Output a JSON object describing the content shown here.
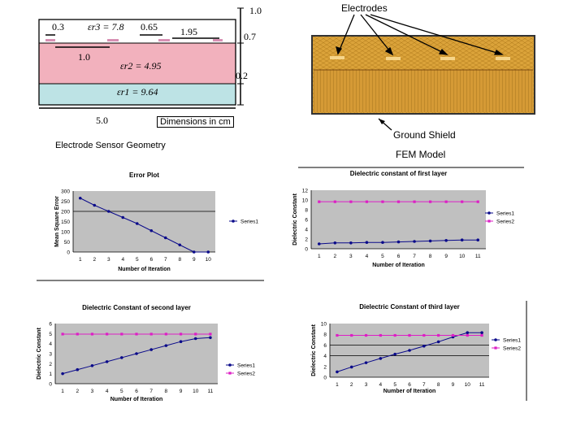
{
  "captions": {
    "electrodes": "Electrodes",
    "dimensions": "Dimensions in cm",
    "ground_shield": "Ground Shield",
    "geometry": "Electrode Sensor Geometry",
    "fem_model": "FEM Model"
  },
  "geometry": {
    "dim_03": "0.3",
    "dim_065": "0.65",
    "dim_195": "1.95",
    "dim_10_top": "1.0",
    "dim_07": "0.7",
    "dim_10_mid": "1.0",
    "dim_02": "0.2",
    "dim_50": "5.0",
    "er3": "εr3 = 7.8",
    "er2": "εr2 = 4.95",
    "er1": "εr1 = 9.64"
  },
  "colors": {
    "layer3": "#ffffff",
    "layer2": "#f2b1bd",
    "layer1": "#bde3e5",
    "electrode": "#d78fb3",
    "fem_fill": "#dba33a",
    "fem_border": "#333333",
    "plot_bg": "#c0c0c0",
    "series1": "#0a0a8a",
    "series2": "#dd1fc5"
  },
  "chart_data": [
    {
      "type": "line",
      "title": "Error Plot",
      "xlabel": "Number of Iteration",
      "ylabel": "Mean Square Error",
      "categories": [
        "1",
        "2",
        "3",
        "4",
        "5",
        "6",
        "7",
        "8",
        "9",
        "10"
      ],
      "ylim": [
        0,
        300
      ],
      "yticks": [
        "0",
        "50",
        "100",
        "150",
        "200",
        "250",
        "300"
      ],
      "hline": 200,
      "series": [
        {
          "name": "Series1",
          "values": [
            265,
            230,
            200,
            170,
            140,
            105,
            70,
            35,
            0,
            0
          ]
        }
      ]
    },
    {
      "type": "line",
      "title": "Dielectric constant of first layer",
      "xlabel": "Number of Iteration",
      "ylabel": "Dielectric Constant",
      "categories": [
        "1",
        "2",
        "3",
        "4",
        "5",
        "6",
        "7",
        "8",
        "9",
        "10",
        "11"
      ],
      "ylim": [
        0,
        12
      ],
      "yticks": [
        "0",
        "2",
        "4",
        "6",
        "8",
        "10",
        "12"
      ],
      "series": [
        {
          "name": "Series1",
          "values": [
            1,
            1.2,
            1.2,
            1.3,
            1.3,
            1.4,
            1.5,
            1.6,
            1.7,
            1.8,
            1.8
          ]
        },
        {
          "name": "Series2",
          "values": [
            9.64,
            9.64,
            9.64,
            9.64,
            9.64,
            9.64,
            9.64,
            9.64,
            9.64,
            9.64,
            9.64
          ]
        }
      ]
    },
    {
      "type": "line",
      "title": "Dielectric Constant of second layer",
      "xlabel": "Number of Iteration",
      "ylabel": "Dielectric Constant",
      "categories": [
        "1",
        "2",
        "3",
        "4",
        "5",
        "6",
        "7",
        "8",
        "9",
        "10",
        "11"
      ],
      "ylim": [
        0,
        6
      ],
      "yticks": [
        "0",
        "1",
        "2",
        "3",
        "4",
        "5",
        "6"
      ],
      "series": [
        {
          "name": "Series1",
          "values": [
            1,
            1.4,
            1.8,
            2.2,
            2.6,
            3.0,
            3.4,
            3.8,
            4.2,
            4.5,
            4.6
          ]
        },
        {
          "name": "Series2",
          "values": [
            4.95,
            4.95,
            4.95,
            4.95,
            4.95,
            4.95,
            4.95,
            4.95,
            4.95,
            4.95,
            4.95
          ]
        }
      ]
    },
    {
      "type": "line",
      "title": "Dielectric Constant of third layer",
      "xlabel": "Number of Iteration",
      "ylabel": "Dielectric Constant",
      "categories": [
        "1",
        "2",
        "3",
        "4",
        "5",
        "6",
        "7",
        "8",
        "9",
        "10",
        "11"
      ],
      "ylim": [
        0,
        10
      ],
      "yticks": [
        "0",
        "2",
        "4",
        "6",
        "8",
        "10"
      ],
      "hlines": [
        4,
        6
      ],
      "series": [
        {
          "name": "Series1",
          "values": [
            1,
            1.9,
            2.7,
            3.5,
            4.3,
            5.0,
            5.8,
            6.6,
            7.5,
            8.3,
            8.3
          ]
        },
        {
          "name": "Series2",
          "values": [
            7.8,
            7.8,
            7.8,
            7.8,
            7.8,
            7.8,
            7.8,
            7.8,
            7.8,
            7.8,
            7.8
          ]
        }
      ]
    }
  ]
}
